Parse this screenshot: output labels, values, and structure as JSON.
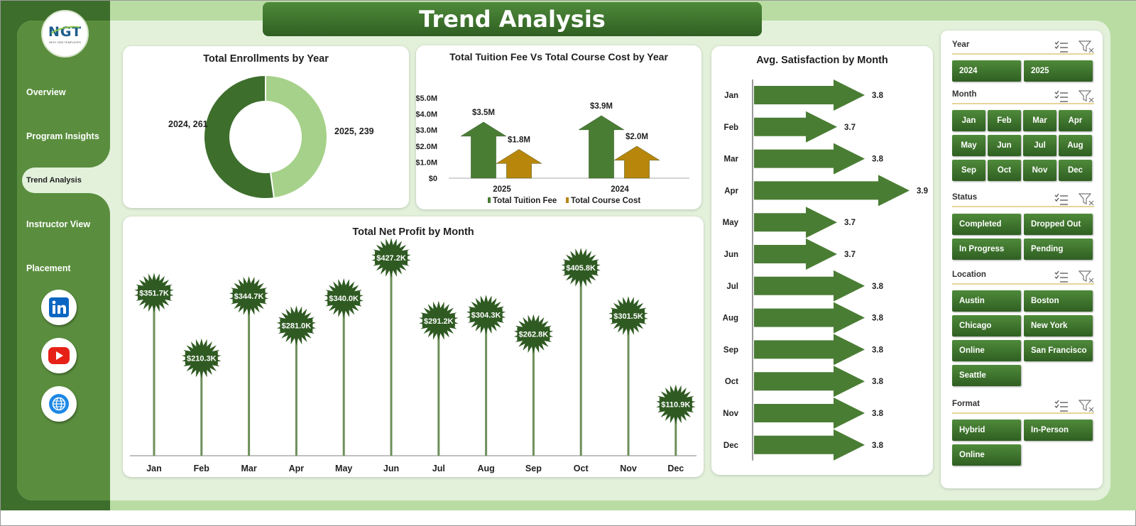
{
  "app": {
    "title": "Trend Analysis",
    "logo_text": "NGT",
    "logo_subtext": "NEXT GEN TEMPLATES"
  },
  "nav": {
    "items": [
      "Overview",
      "Program Insights",
      "Trend Analysis",
      "Instructor View",
      "Placement"
    ],
    "active": "Trend Analysis",
    "social": [
      "linkedin-icon",
      "youtube-icon",
      "globe-icon"
    ]
  },
  "colors": {
    "dark_green": "#3d6e2c",
    "mid_green": "#5a8e3e",
    "light_green": "#a6d18a",
    "arrow_green": "#4a7d34",
    "gold": "#b8860b",
    "bg": "#e3f1db"
  },
  "slicers": [
    {
      "title": "Year",
      "options": [
        "2024",
        "2025"
      ]
    },
    {
      "title": "Month",
      "options": [
        "Jan",
        "Feb",
        "Mar",
        "Apr",
        "May",
        "Jun",
        "Jul",
        "Aug",
        "Sep",
        "Oct",
        "Nov",
        "Dec"
      ]
    },
    {
      "title": "Status",
      "options": [
        "Completed",
        "Dropped Out",
        "In Progress",
        "Pending"
      ]
    },
    {
      "title": "Location",
      "options": [
        "Austin",
        "Boston",
        "Chicago",
        "New York",
        "Online",
        "San Francisco",
        "Seattle"
      ]
    },
    {
      "title": "Format",
      "options": [
        "Hybrid",
        "In-Person",
        "Online"
      ]
    }
  ],
  "chart_data": [
    {
      "type": "pie",
      "title": "Total Enrollments  by Year",
      "categories": [
        "2025",
        "2024"
      ],
      "values": [
        239,
        261
      ],
      "labels": [
        "2025, 239",
        "2024, 261"
      ],
      "colors": [
        "#a6d18a",
        "#3d6e2c"
      ]
    },
    {
      "type": "bar",
      "title": "Total Tuition Fee Vs Total Course Cost by Year",
      "categories": [
        "2025",
        "2024"
      ],
      "series": [
        {
          "name": "Total Tuition Fee",
          "values": [
            3.5,
            3.9
          ],
          "labels": [
            "$3.5M",
            "$3.9M"
          ]
        },
        {
          "name": "Total Course Cost",
          "values": [
            1.8,
            2.0
          ],
          "labels": [
            "$1.8M",
            "$2.0M"
          ]
        }
      ],
      "yticks": [
        "$0",
        "$1.0M",
        "$2.0M",
        "$3.0M",
        "$4.0M",
        "$5.0M"
      ],
      "ylim": [
        0,
        5
      ]
    },
    {
      "type": "bar",
      "title": "Avg. Satisfaction by Month",
      "categories": [
        "Jan",
        "Feb",
        "Mar",
        "Apr",
        "May",
        "Jun",
        "Jul",
        "Aug",
        "Sep",
        "Oct",
        "Nov",
        "Dec"
      ],
      "values": [
        3.8,
        3.7,
        3.8,
        3.9,
        3.7,
        3.7,
        3.8,
        3.8,
        3.8,
        3.8,
        3.8,
        3.8
      ],
      "labels": [
        "3.8",
        "3.7",
        "3.8",
        "3.9",
        "3.7",
        "3.7",
        "3.8",
        "3.8",
        "3.8",
        "3.8",
        "3.8",
        "3.8"
      ]
    },
    {
      "type": "bar",
      "title": "Total Net Profit by Month",
      "categories": [
        "Jan",
        "Feb",
        "Mar",
        "Apr",
        "May",
        "Jun",
        "Jul",
        "Aug",
        "Sep",
        "Oct",
        "Nov",
        "Dec"
      ],
      "values": [
        351.7,
        210.3,
        344.7,
        281.0,
        340.0,
        427.2,
        291.2,
        304.3,
        262.8,
        405.8,
        301.5,
        110.9
      ],
      "labels": [
        "$351.7K",
        "$210.3K",
        "$344.7K",
        "$281.0K",
        "$340.0K",
        "$427.2K",
        "$291.2K",
        "$304.3K",
        "$262.8K",
        "$405.8K",
        "$301.5K",
        "$110.9K"
      ]
    }
  ]
}
